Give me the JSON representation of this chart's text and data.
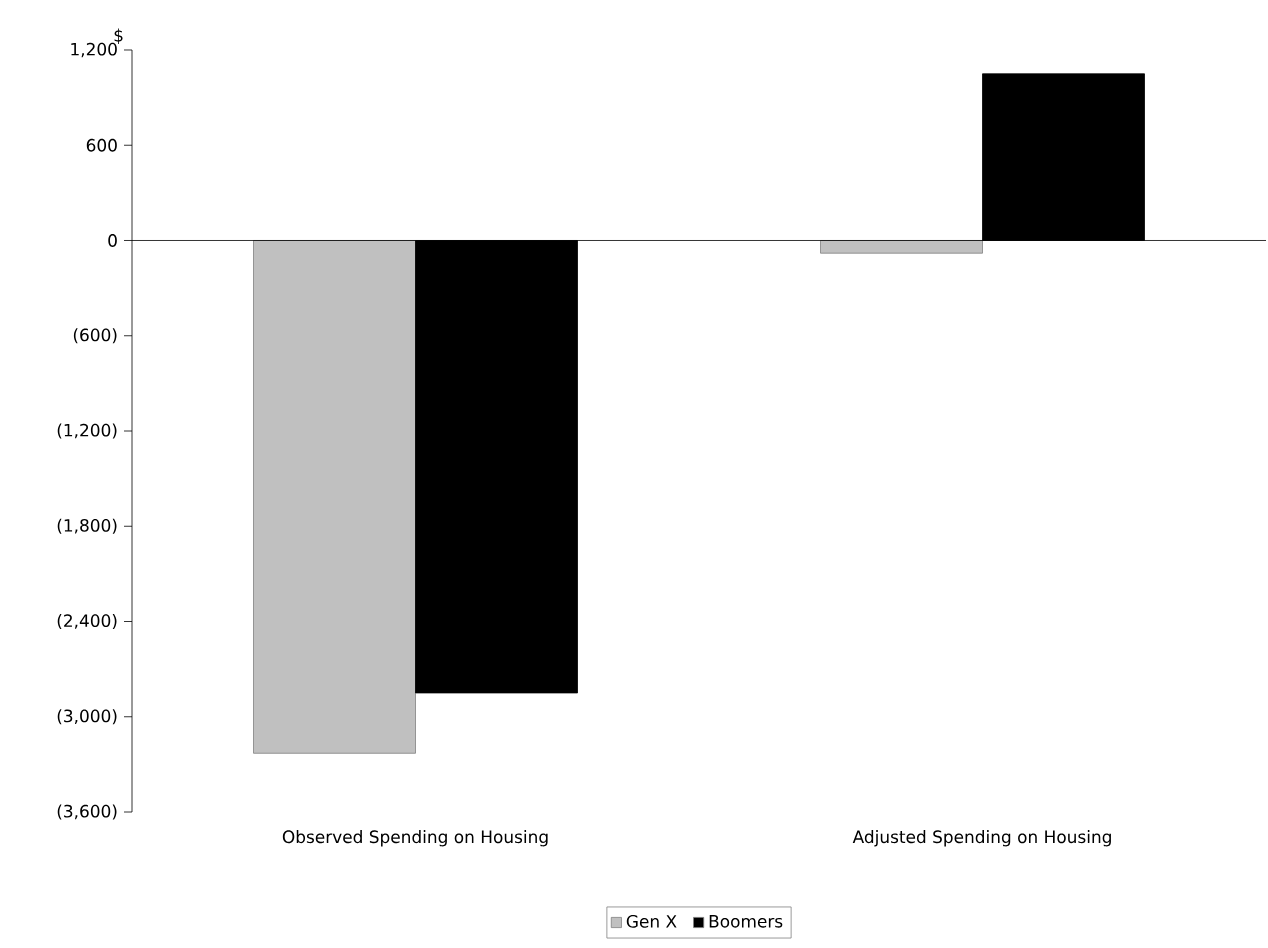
{
  "chart_data": {
    "type": "bar",
    "ylabel": "$",
    "categories": [
      "Observed Spending on Housing",
      "Adjusted Spending on Housing"
    ],
    "series": [
      {
        "name": "Gen X",
        "color": "#c0c0c0",
        "values": [
          -3230,
          -80
        ]
      },
      {
        "name": "Boomers",
        "color": "#000000",
        "values": [
          -2850,
          1050
        ]
      }
    ],
    "ylim": [
      -3600,
      1200
    ],
    "yticks": [
      {
        "value": -3600,
        "label": "(3,600)"
      },
      {
        "value": -3000,
        "label": "(3,000)"
      },
      {
        "value": -2400,
        "label": "(2,400)"
      },
      {
        "value": -1800,
        "label": "(1,800)"
      },
      {
        "value": -1200,
        "label": "(1,200)"
      },
      {
        "value": -600,
        "label": "(600)"
      },
      0,
      600,
      {
        "value": 1200,
        "label": "1,200"
      }
    ],
    "legend": "bottom"
  }
}
